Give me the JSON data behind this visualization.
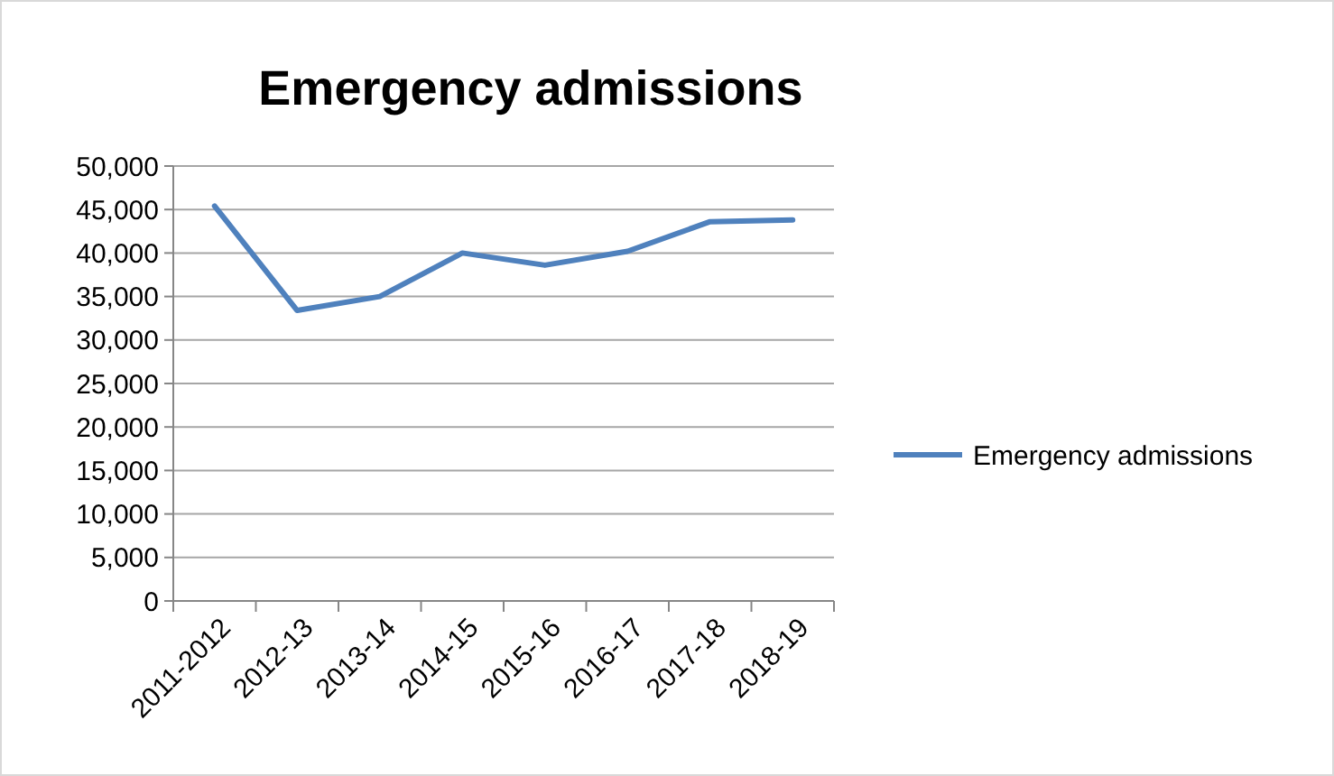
{
  "chart_data": {
    "type": "line",
    "title": "Emergency admissions",
    "categories": [
      "2011-2012",
      "2012-13",
      "2013-14",
      "2014-15",
      "2015-16",
      "2016-17",
      "2017-18",
      "2018-19"
    ],
    "series": [
      {
        "name": "Emergency admissions",
        "color": "#4f81bd",
        "values": [
          45400,
          33400,
          35000,
          40000,
          38600,
          40200,
          43600,
          43800
        ]
      }
    ],
    "ylim": [
      0,
      50000
    ],
    "yticks": [
      {
        "value": 0,
        "label": "0"
      },
      {
        "value": 5000,
        "label": "5,000"
      },
      {
        "value": 10000,
        "label": "10,000"
      },
      {
        "value": 15000,
        "label": "15,000"
      },
      {
        "value": 20000,
        "label": "20,000"
      },
      {
        "value": 25000,
        "label": "25,000"
      },
      {
        "value": 30000,
        "label": "30,000"
      },
      {
        "value": 35000,
        "label": "35,000"
      },
      {
        "value": 40000,
        "label": "40,000"
      },
      {
        "value": 45000,
        "label": "45,000"
      },
      {
        "value": 50000,
        "label": "50,000"
      }
    ],
    "grid": "y",
    "legend": "right",
    "marker": "none",
    "line_style": "solid"
  }
}
